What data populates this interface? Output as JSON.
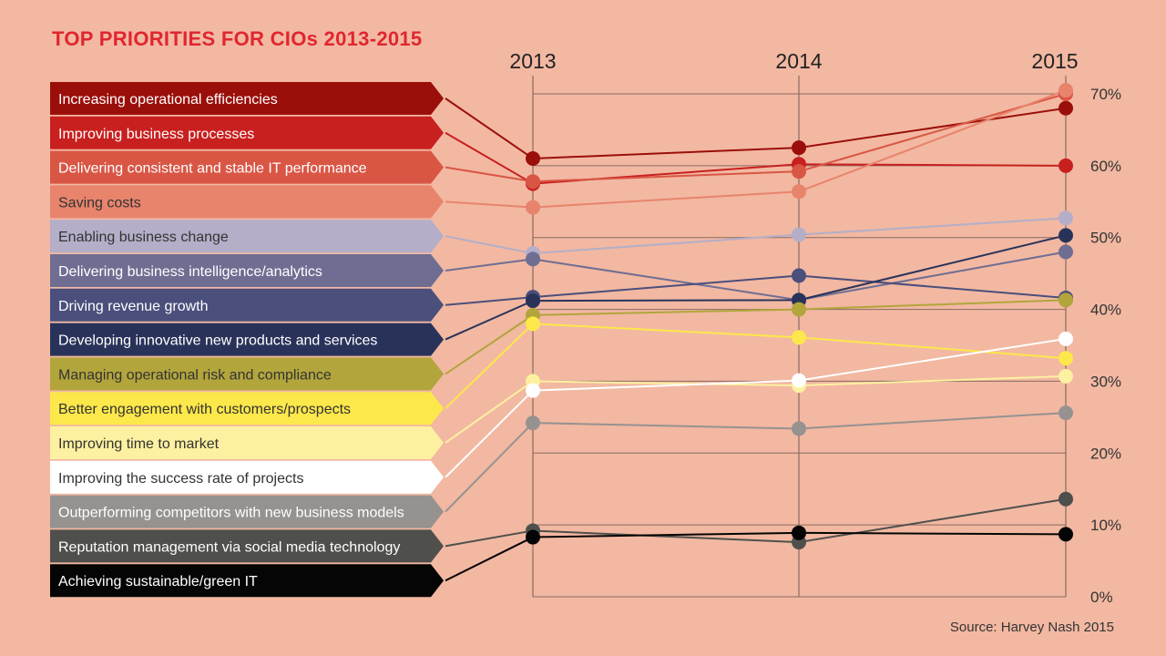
{
  "chart_data": {
    "type": "line",
    "title": "TOP PRIORITIES FOR CIOs 2013-2015",
    "source": "Source: Harvey Nash 2015",
    "x": [
      "2013",
      "2014",
      "2015"
    ],
    "ylim": [
      0,
      70
    ],
    "yticks": [
      "0%",
      "10%",
      "20%",
      "30%",
      "40%",
      "50%",
      "60%",
      "70%"
    ],
    "grid": true,
    "series": [
      {
        "name": "Increasing operational efficiencies",
        "color": "#9b0f0a",
        "text_color": "#ffffff",
        "values": [
          61,
          62.5,
          68
        ]
      },
      {
        "name": "Improving business processes",
        "color": "#c8201f",
        "text_color": "#ffffff",
        "values": [
          57.5,
          60.2,
          60
        ]
      },
      {
        "name": "Delivering consistent and stable IT performance",
        "color": "#d95645",
        "text_color": "#ffffff",
        "values": [
          57.8,
          59.2,
          70
        ]
      },
      {
        "name": "Saving costs",
        "color": "#e8846c",
        "text_color": "#333333",
        "values": [
          54.2,
          56.4,
          70.5
        ]
      },
      {
        "name": "Enabling business change",
        "color": "#b4aec8",
        "text_color": "#333333",
        "values": [
          47.8,
          50.4,
          52.7
        ]
      },
      {
        "name": "Delivering business intelligence/analytics",
        "color": "#6f6e92",
        "text_color": "#ffffff",
        "values": [
          47,
          41.3,
          48
        ]
      },
      {
        "name": "Driving revenue growth",
        "color": "#4a4f7c",
        "text_color": "#ffffff",
        "values": [
          41.7,
          44.7,
          41.6
        ]
      },
      {
        "name": "Developing innovative new products and services",
        "color": "#29335a",
        "text_color": "#ffffff",
        "values": [
          41.2,
          41.3,
          50.3
        ]
      },
      {
        "name": "Managing operational risk and compliance",
        "color": "#b2a53c",
        "text_color": "#333333",
        "values": [
          39.2,
          40,
          41.3
        ]
      },
      {
        "name": "Better engagement with customers/prospects",
        "color": "#fce84a",
        "text_color": "#333333",
        "values": [
          38,
          36.1,
          33.2
        ]
      },
      {
        "name": "Improving time to market",
        "color": "#fdf0a0",
        "text_color": "#333333",
        "values": [
          30,
          29.4,
          30.7
        ]
      },
      {
        "name": "Improving the success rate of projects",
        "color": "#ffffff",
        "text_color": "#333333",
        "values": [
          28.7,
          30.1,
          35.9
        ]
      },
      {
        "name": "Outperforming competitors with new business models",
        "color": "#959290",
        "text_color": "#ffffff",
        "values": [
          24.2,
          23.4,
          25.6
        ]
      },
      {
        "name": "Reputation management via social media technology",
        "color": "#4f4f4c",
        "text_color": "#ffffff",
        "values": [
          9.2,
          7.6,
          13.6
        ]
      },
      {
        "name": "Achieving sustainable/green IT",
        "color": "#050505",
        "text_color": "#ffffff",
        "values": [
          8.3,
          8.9,
          8.7
        ]
      }
    ]
  }
}
